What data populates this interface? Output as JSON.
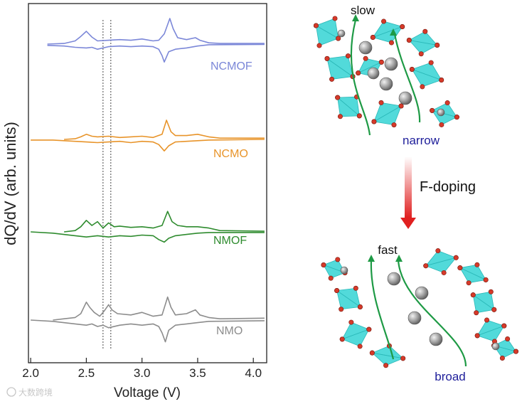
{
  "chart_data": {
    "type": "line",
    "xlabel": "Voltage (V)",
    "ylabel": "dQ/dV (arb. units)",
    "xlim": [
      1.98,
      4.12
    ],
    "xticks": [
      "2.0",
      "2.5",
      "3.0",
      "3.5",
      "4.0"
    ],
    "reference_lines_x": [
      2.65,
      2.72
    ],
    "series": [
      {
        "name": "NCMOF",
        "color": "#7b87d8",
        "charge": {
          "x": [
            2.15,
            2.3,
            2.4,
            2.45,
            2.5,
            2.55,
            2.6,
            2.7,
            2.8,
            2.9,
            3.0,
            3.1,
            3.15,
            3.2,
            3.25,
            3.28,
            3.32,
            3.4,
            3.48,
            3.52,
            3.6,
            3.7,
            4.1
          ],
          "y": [
            0.0,
            0.05,
            0.25,
            0.6,
            1.0,
            0.55,
            0.25,
            0.3,
            0.35,
            0.3,
            0.4,
            0.25,
            0.3,
            0.8,
            2.0,
            1.2,
            0.5,
            0.35,
            0.5,
            0.3,
            0.1,
            0.05,
            0.05
          ]
        },
        "discharge": {
          "x": [
            2.15,
            2.3,
            2.4,
            2.5,
            2.55,
            2.6,
            2.7,
            2.8,
            2.9,
            3.0,
            3.1,
            3.15,
            3.18,
            3.2,
            3.24,
            3.3,
            3.4,
            3.5,
            3.6,
            4.1
          ],
          "y": [
            -0.1,
            -0.15,
            -0.25,
            -0.3,
            -0.25,
            -0.4,
            -0.2,
            -0.15,
            -0.2,
            -0.15,
            -0.2,
            -0.4,
            -0.9,
            -1.4,
            -0.6,
            -0.4,
            -0.3,
            -0.15,
            -0.05,
            -0.03
          ]
        }
      },
      {
        "name": "NCMO",
        "color": "#e8942a",
        "charge": {
          "x": [
            2.3,
            2.4,
            2.45,
            2.5,
            2.55,
            2.6,
            2.7,
            2.8,
            2.9,
            3.0,
            3.1,
            3.18,
            3.22,
            3.26,
            3.3,
            3.4,
            3.5,
            3.6,
            3.7,
            4.1
          ],
          "y": [
            0.0,
            0.05,
            0.2,
            0.4,
            0.25,
            0.2,
            0.25,
            0.15,
            0.2,
            0.25,
            0.15,
            0.4,
            1.5,
            0.6,
            0.3,
            0.3,
            0.4,
            0.2,
            0.1,
            0.1
          ]
        },
        "discharge": {
          "x": [
            2.0,
            2.2,
            2.4,
            2.5,
            2.6,
            2.7,
            2.8,
            2.9,
            3.0,
            3.1,
            3.15,
            3.2,
            3.24,
            3.3,
            3.4,
            3.5,
            3.6,
            4.1
          ],
          "y": [
            -0.05,
            -0.05,
            -0.15,
            -0.2,
            -0.25,
            -0.2,
            -0.15,
            -0.25,
            -0.15,
            -0.2,
            -0.4,
            -0.9,
            -0.5,
            -0.2,
            -0.15,
            -0.1,
            -0.05,
            0.0
          ]
        }
      },
      {
        "name": "NMOF",
        "color": "#2e8b2e",
        "charge": {
          "x": [
            2.3,
            2.4,
            2.45,
            2.5,
            2.55,
            2.6,
            2.65,
            2.7,
            2.75,
            2.8,
            2.9,
            3.0,
            3.1,
            3.18,
            3.23,
            3.27,
            3.32,
            3.4,
            3.5,
            3.6,
            3.7,
            4.1
          ],
          "y": [
            0.0,
            0.1,
            0.4,
            0.9,
            0.5,
            0.8,
            0.3,
            0.7,
            0.4,
            0.45,
            0.35,
            0.4,
            0.3,
            0.5,
            1.6,
            0.8,
            0.5,
            0.4,
            0.4,
            0.3,
            0.1,
            0.05
          ]
        },
        "discharge": {
          "x": [
            2.0,
            2.2,
            2.4,
            2.5,
            2.6,
            2.7,
            2.8,
            2.9,
            3.0,
            3.1,
            3.15,
            3.2,
            3.24,
            3.3,
            3.4,
            3.5,
            3.6,
            4.1
          ],
          "y": [
            0.0,
            -0.1,
            -0.3,
            -0.4,
            -0.3,
            -0.4,
            -0.3,
            -0.35,
            -0.25,
            -0.3,
            -0.6,
            -0.8,
            -0.5,
            -0.3,
            -0.2,
            -0.1,
            -0.05,
            -0.05
          ]
        }
      },
      {
        "name": "NMO",
        "color": "#8c8c8c",
        "charge": {
          "x": [
            2.2,
            2.3,
            2.4,
            2.45,
            2.5,
            2.53,
            2.57,
            2.62,
            2.66,
            2.7,
            2.73,
            2.78,
            2.9,
            3.0,
            3.1,
            3.18,
            3.23,
            3.26,
            3.3,
            3.4,
            3.48,
            3.52,
            3.6,
            3.7,
            4.1
          ],
          "y": [
            0.0,
            0.1,
            0.2,
            0.5,
            1.4,
            1.0,
            0.6,
            0.3,
            0.7,
            1.2,
            0.8,
            0.5,
            0.4,
            0.6,
            0.3,
            0.4,
            1.8,
            1.0,
            0.4,
            0.5,
            0.8,
            0.4,
            0.2,
            0.1,
            0.15
          ]
        },
        "discharge": {
          "x": [
            2.0,
            2.2,
            2.4,
            2.5,
            2.55,
            2.6,
            2.65,
            2.7,
            2.8,
            2.9,
            3.0,
            3.1,
            3.15,
            3.18,
            3.21,
            3.24,
            3.3,
            3.4,
            3.5,
            3.6,
            4.1
          ],
          "y": [
            0.0,
            -0.1,
            -0.3,
            -0.4,
            -0.3,
            -0.5,
            -0.4,
            -0.6,
            -0.4,
            -0.3,
            -0.4,
            -0.3,
            -0.5,
            -1.0,
            -1.7,
            -0.8,
            -0.4,
            -0.3,
            -0.2,
            -0.1,
            -0.05
          ]
        }
      }
    ]
  },
  "schematic": {
    "top_label": "slow",
    "top_channel_label": "narrow",
    "process_label": "F-doping",
    "bottom_label": "fast",
    "bottom_channel_label": "broad",
    "colors": {
      "octahedra": "#3fd6d6",
      "oxygen": "#d63a2a",
      "cation": "#8e8e8e",
      "arrow": "#1e9a45",
      "doping_arrow": "#e02020",
      "channel_text": "#1e1e9a"
    }
  },
  "watermark": "大数跨境"
}
